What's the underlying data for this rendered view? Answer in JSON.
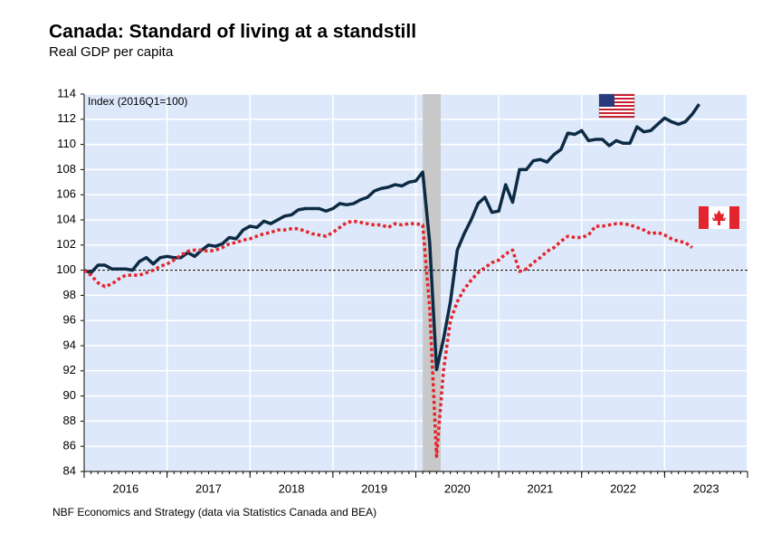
{
  "chart_data": {
    "type": "line",
    "title": "Canada: Standard of living at a standstill",
    "subtitle": "Real GDP per capita",
    "annotation": "Index (2016Q1=100)",
    "source": "NBF Economics and Strategy (data via Statistics Canada and BEA)",
    "xlim": [
      2016,
      2024
    ],
    "xticks": [
      {
        "value": 2016.5,
        "label": "2016"
      },
      {
        "value": 2017.5,
        "label": "2017"
      },
      {
        "value": 2018.5,
        "label": "2018"
      },
      {
        "value": 2019.5,
        "label": "2019"
      },
      {
        "value": 2020.5,
        "label": "2020"
      },
      {
        "value": 2021.5,
        "label": "2021"
      },
      {
        "value": 2022.5,
        "label": "2022"
      },
      {
        "value": 2023.5,
        "label": "2023"
      }
    ],
    "x_minor_ticks": [
      2016,
      2017,
      2018,
      2019,
      2020,
      2021,
      2022,
      2023,
      2024
    ],
    "ylim": [
      84,
      114
    ],
    "yticks": [
      84,
      86,
      88,
      90,
      92,
      94,
      96,
      98,
      100,
      102,
      104,
      106,
      108,
      110,
      112,
      114
    ],
    "grid": true,
    "hline": 100,
    "shade": [
      2020.083,
      2020.3
    ],
    "series": [
      {
        "name": "United States",
        "color": "#0d2b45",
        "style": "solid",
        "x": [
          2016,
          2016.083,
          2016.167,
          2016.25,
          2016.333,
          2016.417,
          2016.5,
          2016.583,
          2016.667,
          2016.75,
          2016.833,
          2016.917,
          2017,
          2017.083,
          2017.167,
          2017.25,
          2017.333,
          2017.417,
          2017.5,
          2017.583,
          2017.667,
          2017.75,
          2017.833,
          2017.917,
          2018,
          2018.083,
          2018.167,
          2018.25,
          2018.333,
          2018.417,
          2018.5,
          2018.583,
          2018.667,
          2018.75,
          2018.833,
          2018.917,
          2019,
          2019.083,
          2019.167,
          2019.25,
          2019.333,
          2019.417,
          2019.5,
          2019.583,
          2019.667,
          2019.75,
          2019.833,
          2019.917,
          2020,
          2020.083,
          2020.167,
          2020.25,
          2020.333,
          2020.417,
          2020.5,
          2020.583,
          2020.667,
          2020.75,
          2020.833,
          2020.917,
          2021,
          2021.083,
          2021.167,
          2021.25,
          2021.333,
          2021.417,
          2021.5,
          2021.583,
          2021.667,
          2021.75,
          2021.833,
          2021.917,
          2022,
          2022.083,
          2022.167,
          2022.25,
          2022.333,
          2022.417,
          2022.5,
          2022.583,
          2022.667,
          2022.75,
          2022.833,
          2022.917,
          2023,
          2023.083,
          2023.167,
          2023.25,
          2023.333,
          2023.417
        ],
        "values": [
          100,
          99.8,
          100.4,
          100.4,
          100.1,
          100.1,
          100.1,
          100,
          100.7,
          101.0,
          100.5,
          101.0,
          101.1,
          101.0,
          101.0,
          101.4,
          101.1,
          101.6,
          102.0,
          101.9,
          102.1,
          102.6,
          102.5,
          103.2,
          103.5,
          103.4,
          103.9,
          103.7,
          104.0,
          104.3,
          104.4,
          104.8,
          104.9,
          104.9,
          104.9,
          104.7,
          104.9,
          105.3,
          105.2,
          105.3,
          105.6,
          105.8,
          106.3,
          106.5,
          106.6,
          106.8,
          106.7,
          107.0,
          107.1,
          107.8,
          102.2,
          92.1,
          94.5,
          97.5,
          101.6,
          102.9,
          104.0,
          105.3,
          105.8,
          104.6,
          104.7,
          106.8,
          105.4,
          108.0,
          108.0,
          108.7,
          108.8,
          108.6,
          109.2,
          109.6,
          110.9,
          110.8,
          111.1,
          110.3,
          110.4,
          110.4,
          109.9,
          110.3,
          110.1,
          110.1,
          111.4,
          111.0,
          111.1,
          111.6,
          112.1,
          111.8,
          111.6,
          111.8,
          112.4,
          113.2
        ]
      },
      {
        "name": "Canada",
        "color": "#e3262e",
        "style": "dotted",
        "x": [
          2016,
          2016.083,
          2016.167,
          2016.25,
          2016.333,
          2016.417,
          2016.5,
          2016.583,
          2016.667,
          2016.75,
          2016.833,
          2016.917,
          2017,
          2017.083,
          2017.167,
          2017.25,
          2017.333,
          2017.417,
          2017.5,
          2017.583,
          2017.667,
          2017.75,
          2017.833,
          2017.917,
          2018,
          2018.083,
          2018.167,
          2018.25,
          2018.333,
          2018.417,
          2018.5,
          2018.583,
          2018.667,
          2018.75,
          2018.833,
          2018.917,
          2019,
          2019.083,
          2019.167,
          2019.25,
          2019.333,
          2019.417,
          2019.5,
          2019.583,
          2019.667,
          2019.75,
          2019.833,
          2019.917,
          2020,
          2020.083,
          2020.167,
          2020.25,
          2020.333,
          2020.417,
          2020.5,
          2020.583,
          2020.667,
          2020.75,
          2020.833,
          2020.917,
          2021,
          2021.083,
          2021.167,
          2021.25,
          2021.333,
          2021.417,
          2021.5,
          2021.583,
          2021.667,
          2021.75,
          2021.833,
          2021.917,
          2022,
          2022.083,
          2022.167,
          2022.25,
          2022.333,
          2022.417,
          2022.5,
          2022.583,
          2022.667,
          2022.75,
          2022.833,
          2022.917,
          2023,
          2023.083,
          2023.167,
          2023.25,
          2023.333
        ],
        "values": [
          100,
          99.6,
          99.0,
          98.7,
          98.9,
          99.3,
          99.6,
          99.6,
          99.6,
          99.8,
          100.0,
          100.3,
          100.5,
          100.8,
          101.2,
          101.5,
          101.6,
          101.6,
          101.5,
          101.6,
          101.8,
          102.1,
          102.2,
          102.4,
          102.5,
          102.7,
          102.9,
          103.0,
          103.2,
          103.2,
          103.3,
          103.3,
          103.1,
          102.9,
          102.8,
          102.7,
          103.0,
          103.4,
          103.8,
          103.9,
          103.8,
          103.7,
          103.6,
          103.6,
          103.4,
          103.7,
          103.6,
          103.7,
          103.7,
          103.6,
          97.0,
          85.2,
          92.0,
          96.0,
          97.5,
          98.5,
          99.2,
          99.8,
          100.2,
          100.6,
          100.8,
          101.3,
          101.6,
          99.9,
          100.1,
          100.6,
          101.0,
          101.5,
          101.8,
          102.3,
          102.7,
          102.6,
          102.6,
          102.8,
          103.5,
          103.5,
          103.6,
          103.7,
          103.7,
          103.6,
          103.4,
          103.2,
          102.9,
          103.0,
          102.8,
          102.5,
          102.3,
          102.2,
          101.8
        ]
      }
    ]
  }
}
